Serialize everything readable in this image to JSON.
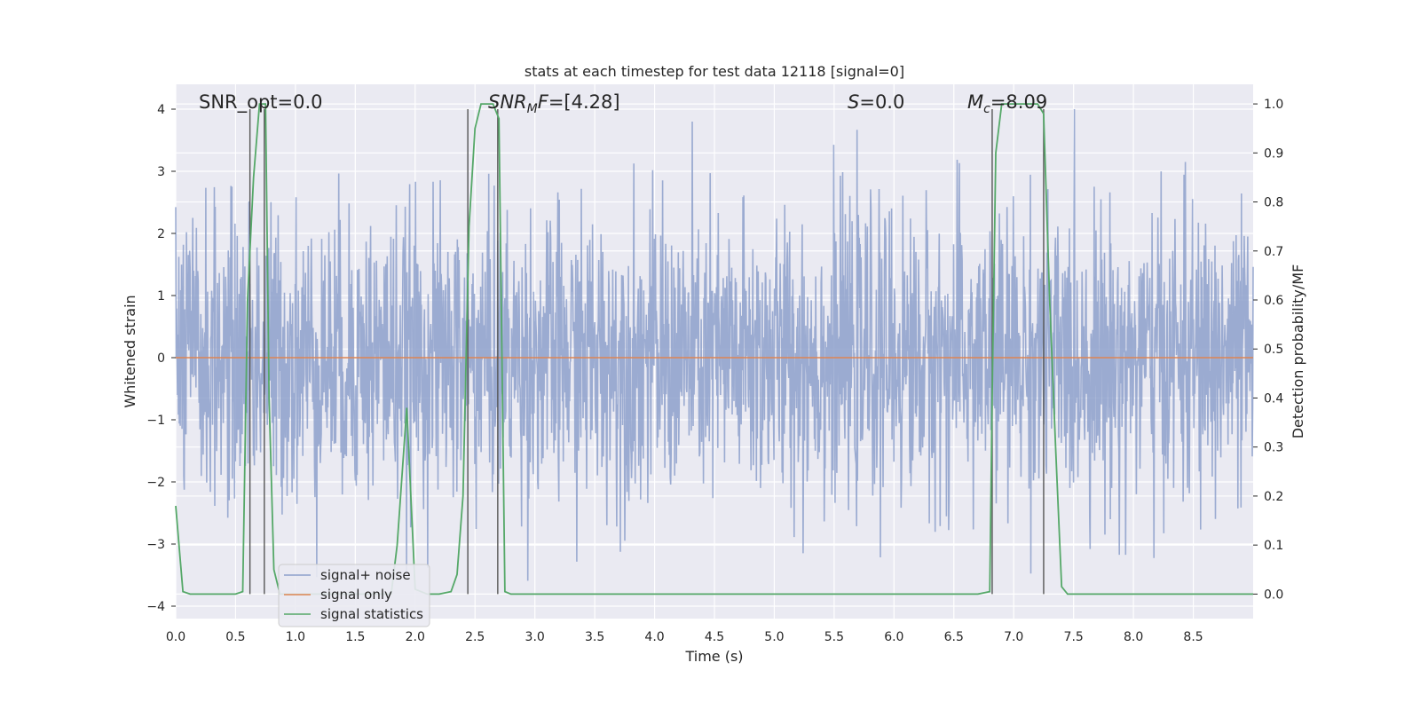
{
  "chart_data": {
    "type": "line",
    "title": "stats at each timestep for test data 12118 [signal=0]",
    "xlabel": "Time (s)",
    "ylabel_left": "Whitened strain",
    "ylabel_right": "Detection probability/MF",
    "xlim": [
      0.0,
      9.0
    ],
    "ylim_left": [
      -4.2,
      4.4
    ],
    "ylim_right": [
      -0.05,
      1.04
    ],
    "x_ticks": [
      "0.0",
      "0.5",
      "1.0",
      "1.5",
      "2.0",
      "2.5",
      "3.0",
      "3.5",
      "4.0",
      "4.5",
      "5.0",
      "5.5",
      "6.0",
      "6.5",
      "7.0",
      "7.5",
      "8.0",
      "8.5"
    ],
    "y_ticks_left": [
      "4",
      "3",
      "2",
      "1",
      "0",
      "−1",
      "−2",
      "−3",
      "−4"
    ],
    "y_ticks_right": [
      "1.0",
      "0.9",
      "0.8",
      "0.7",
      "0.6",
      "0.5",
      "0.4",
      "0.3",
      "0.2",
      "0.1",
      "0.0"
    ],
    "grid": true,
    "legend_position": "lower-left",
    "annotations": [
      {
        "text": "SNR_opt=0.0",
        "italic": false
      },
      {
        "text": "SNR",
        "sub": "M",
        "tail": "F=[4.28]",
        "italic": true
      },
      {
        "text": "S",
        "tail": "=0.0",
        "italic": true
      },
      {
        "text": "M",
        "sub": "c",
        "tail": "=8.09",
        "italic": true
      }
    ],
    "series": [
      {
        "name": "signal+ noise",
        "color": "#8da0cb",
        "description_axis": "left",
        "style": "dense noise, amplitude ~±2.5, spikes to ±4"
      },
      {
        "name": "signal only",
        "color": "#dd8452",
        "description_axis": "left",
        "values_constant": 0.0
      },
      {
        "name": "signal statistics",
        "color": "#55a868",
        "description_axis": "right",
        "x": [
          0.0,
          0.06,
          0.12,
          0.2,
          0.3,
          0.4,
          0.5,
          0.56,
          0.6,
          0.65,
          0.7,
          0.75,
          0.78,
          0.82,
          0.87,
          1.0,
          1.2,
          1.4,
          1.6,
          1.8,
          1.85,
          1.93,
          2.0,
          2.1,
          2.2,
          2.3,
          2.35,
          2.4,
          2.45,
          2.5,
          2.55,
          2.65,
          2.7,
          2.75,
          2.8,
          3.0,
          4.0,
          5.0,
          6.0,
          6.7,
          6.8,
          6.82,
          6.85,
          6.9,
          7.0,
          7.1,
          7.2,
          7.25,
          7.3,
          7.35,
          7.4,
          7.45,
          7.6,
          8.0,
          8.5,
          9.0
        ],
        "y": [
          0.18,
          0.005,
          0.0,
          0.0,
          0.0,
          0.0,
          0.0,
          0.005,
          0.6,
          0.85,
          1.0,
          1.0,
          0.4,
          0.05,
          0.0,
          0.0,
          0.0,
          0.0,
          0.0,
          0.0,
          0.1,
          0.38,
          0.01,
          0.0,
          0.0,
          0.005,
          0.04,
          0.2,
          0.75,
          0.95,
          1.0,
          1.0,
          0.97,
          0.005,
          0.0,
          0.0,
          0.0,
          0.0,
          0.0,
          0.0,
          0.005,
          0.4,
          0.9,
          1.0,
          1.0,
          1.0,
          1.0,
          0.98,
          0.6,
          0.3,
          0.015,
          0.0,
          0.0,
          0.0,
          0.0,
          0.0
        ]
      }
    ],
    "vlines_x": [
      0.62,
      0.74,
      2.44,
      2.69,
      6.82,
      7.25
    ],
    "colors": {
      "plot_bg": "#eaeaf2",
      "grid": "#ffffff",
      "vline": "#555555"
    }
  }
}
